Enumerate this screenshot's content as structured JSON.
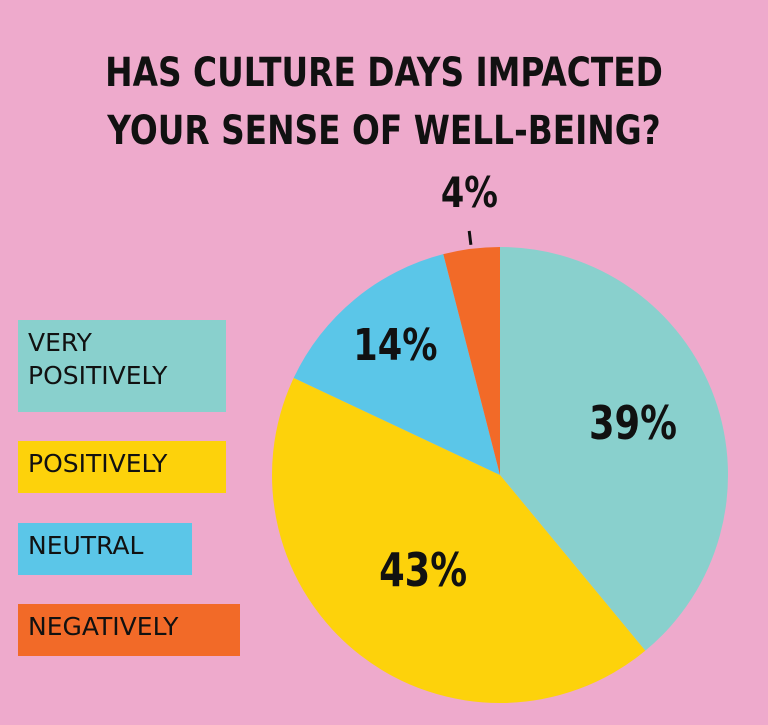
{
  "chart_data": {
    "type": "pie",
    "title": "HAS CULTURE DAYS IMPACTED YOUR SENSE OF WELL-BEING?",
    "title_lines": [
      "HAS CULTURE DAYS IMPACTED",
      "YOUR SENSE OF WELL-BEING?"
    ],
    "categories": [
      "VERY POSITIVELY",
      "POSITIVELY",
      "NEUTRAL",
      "NEGATIVELY"
    ],
    "values": [
      39,
      43,
      14,
      4
    ],
    "value_labels": [
      "39%",
      "43%",
      "14%",
      "4%"
    ],
    "colors": [
      "#89d0cd",
      "#fdd20b",
      "#5bc6e8",
      "#f26a28"
    ],
    "legend_position": "left",
    "background": "#eeaacc"
  }
}
